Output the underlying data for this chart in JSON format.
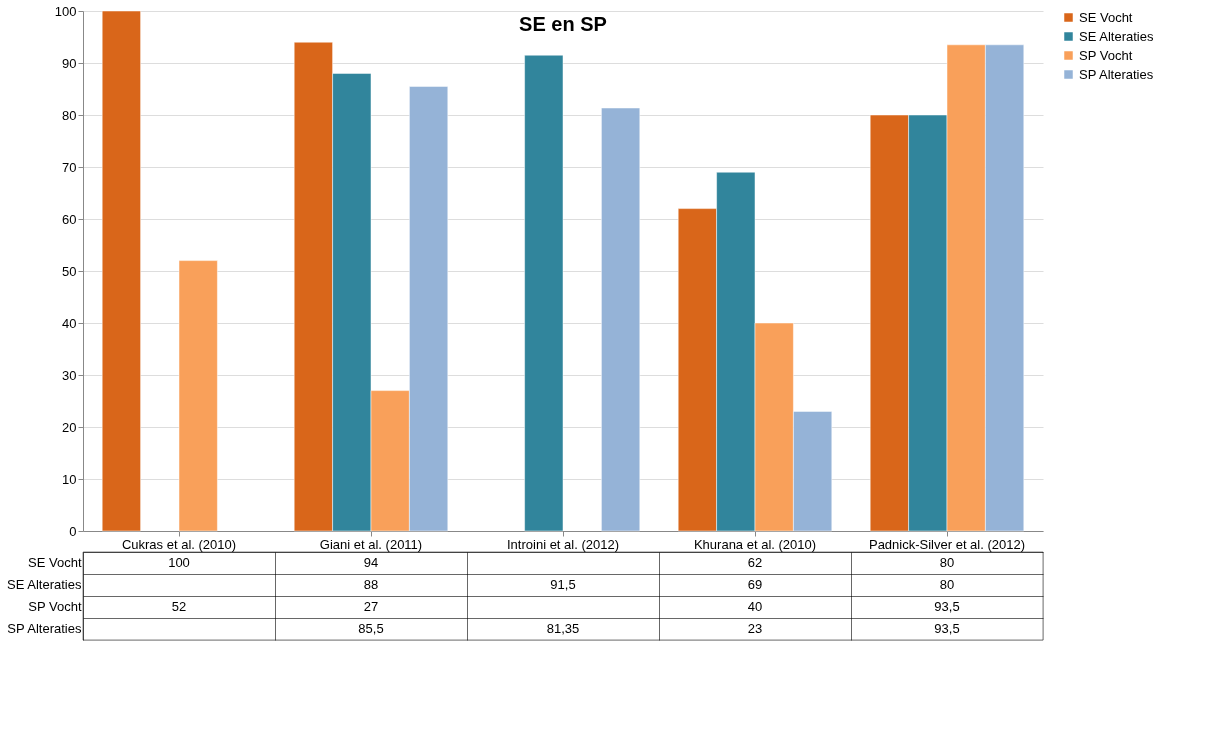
{
  "chart_data": {
    "type": "bar",
    "title": "SE en SP",
    "categories": [
      "Cukras et al. (2010)",
      "Giani et al. (2011)",
      "Introini et al. (2012)",
      "Khurana et al. (2010)",
      "Padnick-Silver et al. (2012)"
    ],
    "series": [
      {
        "name": "SE Vocht",
        "color": "#d9661a",
        "values": [
          100,
          94,
          null,
          62,
          80
        ],
        "value_labels": [
          "100",
          "94",
          null,
          "62",
          "80"
        ]
      },
      {
        "name": "SE Alteraties",
        "color": "#31859c",
        "values": [
          null,
          88,
          91.5,
          69,
          80
        ],
        "value_labels": [
          null,
          "88",
          "91,5",
          "69",
          "80"
        ]
      },
      {
        "name": "SP Vocht",
        "color": "#f9a05a",
        "values": [
          52,
          27,
          null,
          40,
          93.5
        ],
        "value_labels": [
          "52",
          "27",
          null,
          "40",
          "93,5"
        ]
      },
      {
        "name": "SP Alteraties",
        "color": "#95b3d7",
        "values": [
          null,
          85.5,
          81.35,
          23,
          93.5
        ],
        "value_labels": [
          null,
          "85,5",
          "81,35",
          "23",
          "93,5"
        ]
      }
    ],
    "ylim": [
      0,
      100
    ],
    "yticks": [
      0,
      10,
      20,
      30,
      40,
      50,
      60,
      70,
      80,
      90,
      100
    ],
    "grid": "y",
    "legend": "right"
  }
}
